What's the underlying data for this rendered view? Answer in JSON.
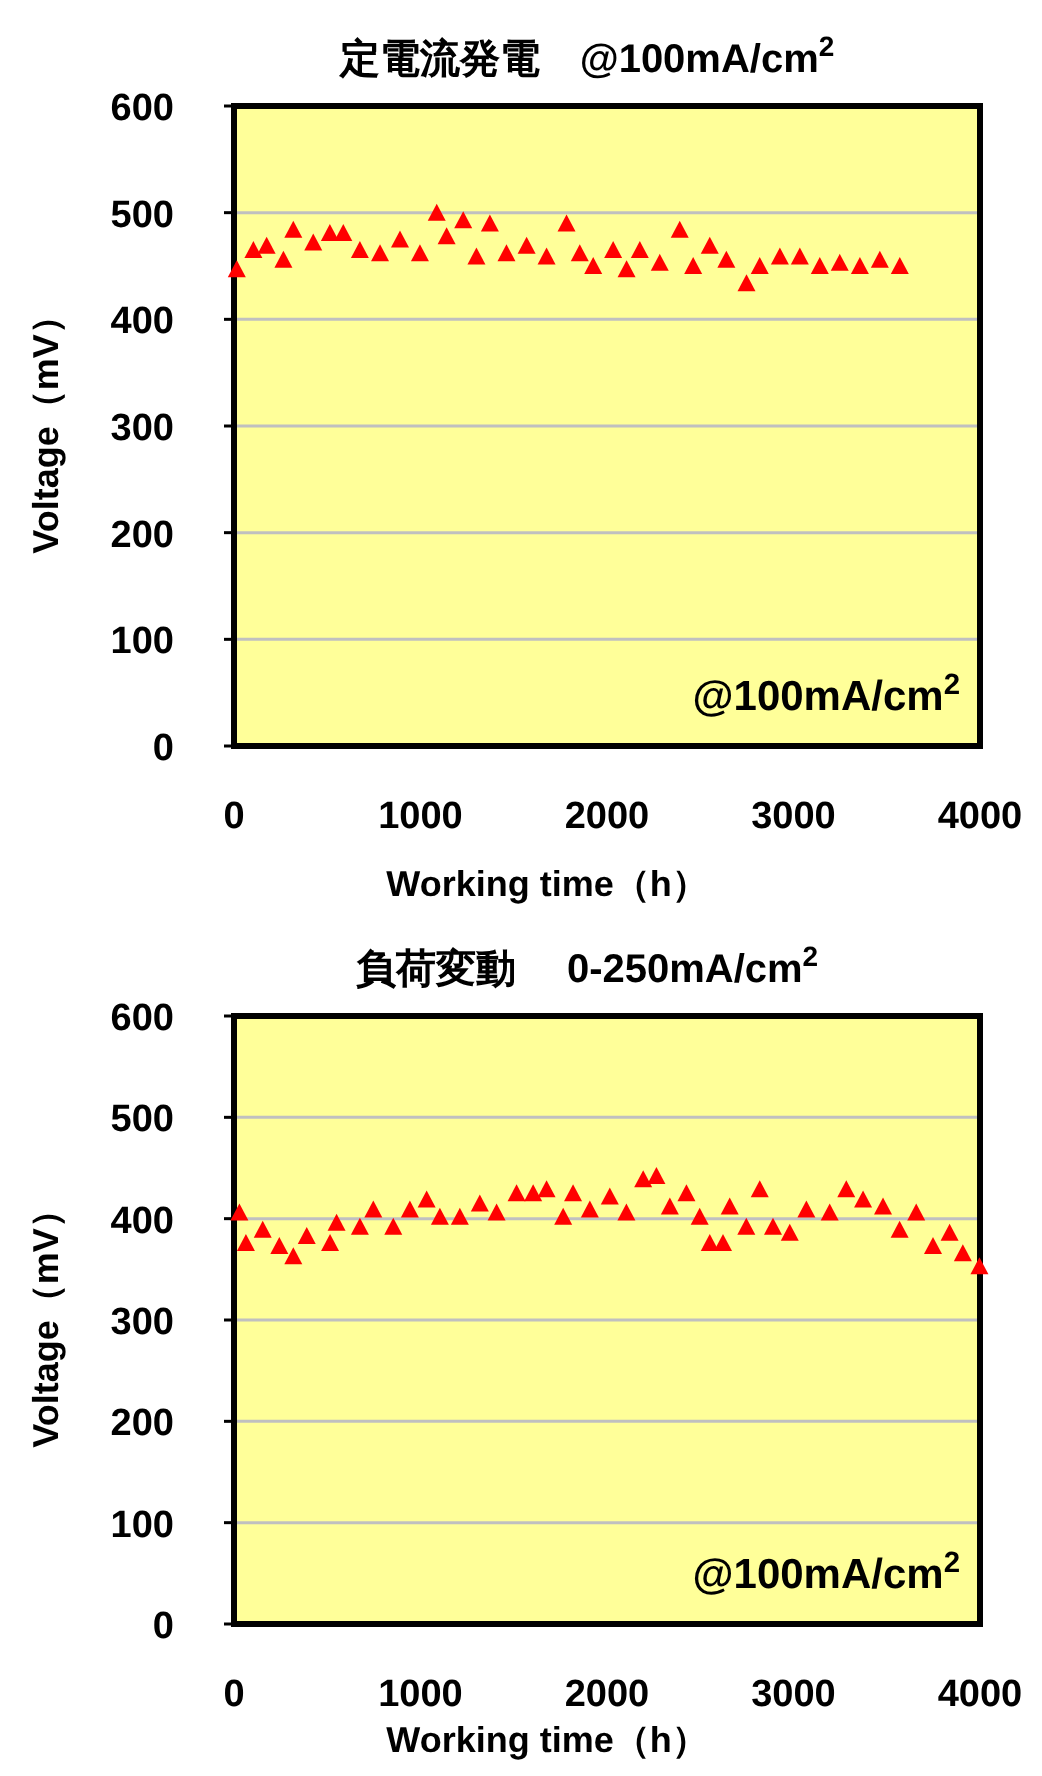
{
  "chart_data": [
    {
      "type": "scatter",
      "title": "定電流発電　@100mA/cm$^{2}$",
      "xlabel": "Working time（h）",
      "ylabel": "Voltage（mV）",
      "annotations": [
        "@100mA/cm$^{2}$"
      ],
      "xlim": [
        0,
        4000
      ],
      "ylim": [
        0,
        600
      ],
      "xticks": [
        0,
        1000,
        2000,
        3000,
        4000
      ],
      "yticks": [
        0,
        100,
        200,
        300,
        400,
        500,
        600
      ],
      "grid": "y",
      "marker": "triangle",
      "series": [
        {
          "color": "#ff0000",
          "x": [
            15,
            104,
            175,
            265,
            318,
            425,
            514,
            586,
            675,
            783,
            890,
            997,
            1087,
            1140,
            1229,
            1300,
            1372,
            1461,
            1569,
            1676,
            1783,
            1854,
            1926,
            2033,
            2105,
            2176,
            2283,
            2390,
            2462,
            2551,
            2640,
            2748,
            2819,
            2927,
            3034,
            3141,
            3248,
            3356,
            3463,
            3570
          ],
          "values": [
            446,
            464,
            468,
            455,
            483,
            471,
            480,
            480,
            464,
            461,
            474,
            461,
            499,
            477,
            492,
            458,
            489,
            461,
            468,
            458,
            489,
            461,
            449,
            464,
            446,
            464,
            452,
            483,
            449,
            468,
            455,
            433,
            449,
            458,
            458,
            449,
            452,
            449,
            455,
            449
          ]
        }
      ]
    },
    {
      "type": "scatter",
      "title": "負荷変動　 0-250mA/cm$^{2}$",
      "xlabel": "Working time（h）",
      "ylabel": "Voltage（mV）",
      "annotations": [
        "@100mA/cm$^{2}$"
      ],
      "xlim": [
        0,
        4000
      ],
      "ylim": [
        0,
        600
      ],
      "xticks": [
        0,
        1000,
        2000,
        3000,
        4000
      ],
      "yticks": [
        0,
        100,
        200,
        300,
        400,
        500,
        600
      ],
      "grid": "y",
      "marker": "triangle",
      "series": [
        {
          "color": "#ff0000",
          "x": [
            29,
            64,
            154,
            243,
            318,
            390,
            515,
            550,
            675,
            747,
            854,
            943,
            1033,
            1104,
            1211,
            1318,
            1408,
            1515,
            1604,
            1676,
            1765,
            1818,
            1908,
            2015,
            2104,
            2194,
            2265,
            2337,
            2426,
            2497,
            2551,
            2622,
            2658,
            2747,
            2819,
            2890,
            2980,
            3069,
            3194,
            3283,
            3373,
            3480,
            3569,
            3658,
            3748,
            3837,
            3908,
            3997
          ],
          "values": [
            405,
            375,
            388,
            372,
            362,
            382,
            375,
            395,
            391,
            408,
            391,
            408,
            418,
            401,
            401,
            414,
            405,
            424,
            424,
            428,
            401,
            424,
            408,
            421,
            405,
            438,
            441,
            411,
            424,
            401,
            375,
            375,
            411,
            391,
            428,
            391,
            385,
            408,
            405,
            428,
            418,
            411,
            388,
            405,
            372,
            385,
            365,
            352
          ]
        }
      ]
    }
  ]
}
